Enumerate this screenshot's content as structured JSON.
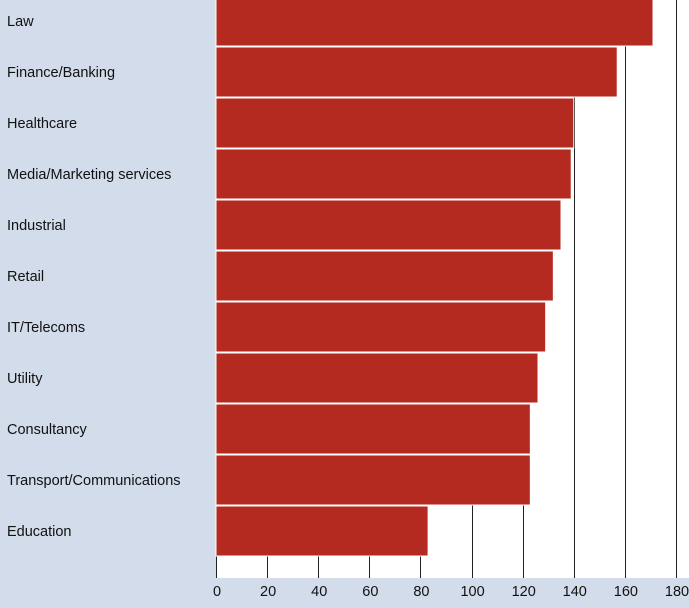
{
  "chart_data": {
    "type": "bar",
    "orientation": "horizontal",
    "title": "",
    "xlabel": "",
    "ylabel": "",
    "categories": [
      "Law",
      "Finance/Banking",
      "Healthcare",
      "Media/Marketing services",
      "Industrial",
      "Retail",
      "IT/Telecoms",
      "Utility",
      "Consultancy",
      "Transport/Communications",
      "Education"
    ],
    "values": [
      171,
      157,
      140,
      139,
      135,
      132,
      129,
      126,
      123,
      123,
      83
    ],
    "xlim": [
      0,
      180
    ],
    "xticks": [
      0,
      20,
      40,
      60,
      80,
      100,
      120,
      140,
      160,
      180
    ],
    "grid": "vertical",
    "legend": "none",
    "colors": {
      "background": "#d2dcea",
      "plot_area": "#ffffff",
      "bar": "#b52a20",
      "bar_edge": "#ffffff",
      "grid": "#222222",
      "text": "#111111"
    }
  }
}
